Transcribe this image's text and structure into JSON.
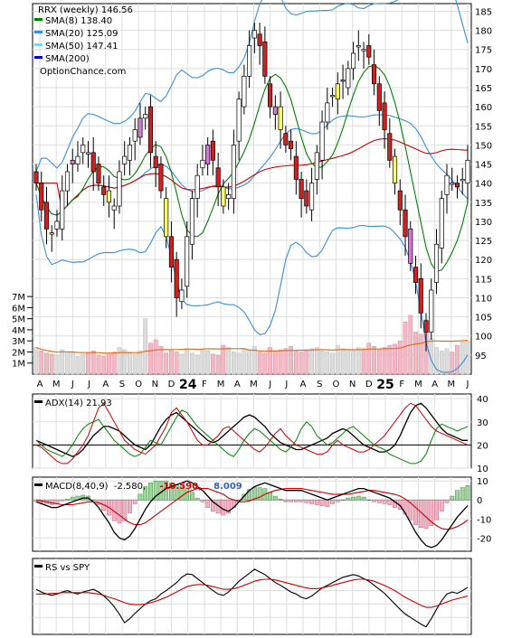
{
  "chart_data": [
    {
      "type": "candlestick",
      "panel": "price",
      "title": "RRX (weekly) 146.56",
      "watermark": "OptionChance.com",
      "legend": [
        {
          "label": "SMA(8) 138.40",
          "color": "#008000"
        },
        {
          "label": "SMA(20) 125.09",
          "color": "#3a8fd6"
        },
        {
          "label": "SMA(50) 147.41",
          "color": "#87ceeb"
        },
        {
          "label": "SMA(200)",
          "color": "#0000cc"
        }
      ],
      "ylim": [
        90,
        187
      ],
      "yticks": [
        95,
        100,
        105,
        110,
        115,
        120,
        125,
        130,
        135,
        140,
        145,
        150,
        155,
        160,
        165,
        170,
        175,
        180,
        185
      ],
      "x_months": [
        "A",
        "M",
        "J",
        "J",
        "A",
        "S",
        "O",
        "N",
        "D",
        "24",
        "F",
        "M",
        "A",
        "M",
        "J",
        "J",
        "A",
        "S",
        "O",
        "N",
        "D",
        "25",
        "F",
        "M",
        "A",
        "M",
        "J"
      ],
      "year_labels": [
        "24",
        "25"
      ],
      "close_approx": [
        140,
        133,
        128,
        127,
        130,
        138,
        143,
        146,
        147,
        150,
        148,
        143,
        140,
        137,
        135,
        134,
        143,
        147,
        150,
        154,
        157,
        158,
        148,
        144,
        138,
        126,
        118,
        110,
        112,
        126,
        136,
        142,
        146,
        150,
        146,
        139,
        134,
        137,
        150,
        162,
        168,
        176,
        180,
        176,
        168,
        160,
        158,
        154,
        150,
        149,
        141,
        136,
        134,
        140,
        148,
        156,
        161,
        163,
        166,
        167,
        170,
        174,
        176,
        175,
        173,
        166,
        159,
        154,
        146,
        140,
        133,
        126,
        119,
        114,
        106,
        101,
        112,
        124,
        136,
        142,
        140,
        139,
        141,
        146
      ]
    },
    {
      "type": "bar",
      "panel": "volume",
      "yticks": [
        "7M",
        "6M",
        "5M",
        "4M",
        "3M",
        "2M",
        "1M"
      ],
      "ylim": [
        0,
        7.5
      ],
      "avg_line_color": "#e07020",
      "values_M_approx": [
        2.4,
        2.1,
        1.9,
        1.8,
        1.7,
        2.2,
        2.0,
        1.9,
        1.6,
        1.8,
        1.9,
        2.1,
        1.7,
        1.6,
        1.8,
        2.0,
        2.4,
        2.2,
        1.9,
        1.8,
        2.1,
        5.0,
        2.8,
        3.1,
        2.5,
        1.9,
        2.2,
        2.0,
        1.8,
        2.3,
        1.9,
        1.7,
        2.2,
        2.1,
        1.8,
        1.7,
        2.6,
        2.4,
        2.0,
        1.9,
        2.3,
        2.2,
        2.5,
        2.0,
        1.9,
        2.4,
        2.1,
        2.2,
        2.3,
        2.5,
        2.1,
        2.0,
        2.2,
        2.3,
        2.4,
        2.1,
        2.0,
        1.9,
        2.6,
        2.3,
        2.2,
        2.1,
        2.4,
        2.3,
        2.8,
        2.5,
        2.2,
        2.4,
        2.6,
        2.7,
        3.0,
        4.7,
        5.3,
        3.8,
        3.6,
        4.9,
        3.2,
        2.4,
        2.1,
        2.3,
        2.0,
        2.6,
        2.9,
        3.0
      ]
    },
    {
      "type": "line",
      "panel": "adx",
      "label": "ADX(14) 21.93",
      "ylim": [
        10,
        42
      ],
      "yticks": [
        40,
        30,
        20,
        10
      ],
      "ref_line": 20,
      "series": [
        {
          "color": "#000000",
          "values_approx": [
            22,
            21,
            20,
            19,
            18,
            17,
            16,
            15,
            16,
            18,
            21,
            24,
            26,
            28,
            28,
            27,
            26,
            24,
            22,
            20,
            19,
            18,
            20,
            24,
            28,
            31,
            33,
            34,
            32,
            30,
            28,
            26,
            24,
            22,
            21,
            22,
            24,
            26,
            28,
            30,
            32,
            33,
            32,
            30,
            28,
            25,
            23,
            21,
            20,
            19,
            18,
            18,
            19,
            20,
            21,
            22,
            23,
            25,
            26,
            27,
            26,
            24,
            22,
            20,
            19,
            18,
            17,
            17,
            18,
            20,
            24,
            29,
            34,
            37,
            38,
            36,
            33,
            30,
            27,
            25,
            24,
            23,
            22,
            22
          ]
        },
        {
          "color": "#008000",
          "values_approx": [
            22,
            20,
            18,
            17,
            16,
            15,
            17,
            20,
            24,
            27,
            29,
            30,
            31,
            28,
            25,
            22,
            20,
            18,
            16,
            15,
            16,
            19,
            22,
            21,
            20,
            24,
            28,
            32,
            35,
            34,
            31,
            28,
            26,
            24,
            22,
            20,
            18,
            16,
            15,
            18,
            22,
            25,
            27,
            26,
            24,
            22,
            20,
            18,
            17,
            19,
            22,
            27,
            30,
            28,
            24,
            22,
            20,
            21,
            23,
            25,
            27,
            28,
            26,
            24,
            22,
            20,
            19,
            18,
            16,
            15,
            14,
            13,
            12,
            12,
            13,
            16,
            22,
            27,
            29,
            28,
            27,
            26,
            27,
            28
          ]
        },
        {
          "color": "#cc0000",
          "values_approx": [
            20,
            19,
            17,
            15,
            13,
            12,
            12,
            14,
            17,
            20,
            24,
            30,
            36,
            38,
            34,
            30,
            26,
            22,
            20,
            18,
            17,
            16,
            18,
            20,
            24,
            28,
            34,
            36,
            33,
            30,
            26,
            22,
            20,
            20,
            22,
            24,
            27,
            28,
            26,
            24,
            22,
            20,
            18,
            17,
            19,
            22,
            25,
            27,
            24,
            22,
            20,
            19,
            18,
            17,
            16,
            16,
            17,
            20,
            22,
            20,
            19,
            18,
            17,
            17,
            18,
            20,
            22,
            24,
            27,
            30,
            33,
            36,
            38,
            37,
            34,
            31,
            28,
            26,
            25,
            24,
            23,
            22,
            21,
            20
          ]
        }
      ]
    },
    {
      "type": "bar+line",
      "panel": "macd",
      "label_prefix": "MACD(8,40,9)",
      "label_value": "-2.580,",
      "label_signal": "-10.590,",
      "label_hist": "8.009",
      "label_signal_color": "#cc0000",
      "label_hist_color": "#3060c0",
      "ylim": [
        -27,
        12
      ],
      "yticks": [
        10,
        0,
        -10,
        -20
      ],
      "macd_approx": [
        -1,
        -2,
        -3,
        -4,
        -4,
        -3,
        -2,
        -1,
        0,
        1,
        1,
        -1,
        -4,
        -8,
        -12,
        -17,
        -20,
        -21,
        -19,
        -15,
        -10,
        -5,
        -1,
        2,
        4,
        6,
        7,
        8,
        9,
        10,
        9,
        7,
        5,
        2,
        -1,
        -3,
        -5,
        -6,
        -4,
        -1,
        2,
        5,
        7,
        8,
        9,
        8,
        7,
        6,
        5,
        5,
        5,
        5,
        4,
        3,
        2,
        1,
        0,
        1,
        2,
        3,
        4,
        5,
        6,
        6,
        5,
        4,
        3,
        2,
        1,
        -1,
        -3,
        -7,
        -12,
        -17,
        -21,
        -24,
        -25,
        -24,
        -21,
        -17,
        -13,
        -9,
        -6,
        -3
      ],
      "signal_approx": [
        0,
        -0.5,
        -1,
        -1.5,
        -2,
        -2.5,
        -2.5,
        -2.5,
        -2,
        -1.5,
        -1,
        -1,
        -1.5,
        -2.5,
        -4,
        -6,
        -8,
        -10,
        -12,
        -13,
        -13,
        -12,
        -10,
        -8,
        -6,
        -4,
        -2,
        0,
        2,
        4,
        5,
        6,
        6,
        6,
        5,
        4,
        3,
        1,
        0,
        -1,
        -1,
        -0.5,
        0.5,
        1.5,
        3,
        4,
        5,
        5.5,
        6,
        6,
        6,
        6,
        5.5,
        5,
        4.5,
        4,
        3.5,
        3,
        3,
        3,
        3,
        3.5,
        4,
        4.5,
        5,
        5,
        4.5,
        4,
        3.5,
        3,
        2,
        0.5,
        -1.5,
        -4,
        -6.5,
        -9,
        -11.5,
        -13.5,
        -15,
        -15.5,
        -15,
        -14,
        -12.5,
        -10.6
      ]
    },
    {
      "type": "line",
      "panel": "rs",
      "label": "RS vs SPY",
      "series": [
        {
          "color": "#000000",
          "values_approx": [
            0.62,
            0.58,
            0.55,
            0.53,
            0.55,
            0.58,
            0.6,
            0.57,
            0.55,
            0.58,
            0.6,
            0.62,
            0.58,
            0.52,
            0.45,
            0.36,
            0.25,
            0.12,
            0.18,
            0.26,
            0.33,
            0.4,
            0.45,
            0.48,
            0.55,
            0.6,
            0.66,
            0.72,
            0.8,
            0.85,
            0.84,
            0.78,
            0.72,
            0.66,
            0.6,
            0.55,
            0.53,
            0.58,
            0.66,
            0.74,
            0.8,
            0.86,
            0.92,
            0.88,
            0.84,
            0.78,
            0.72,
            0.68,
            0.63,
            0.58,
            0.55,
            0.5,
            0.48,
            0.52,
            0.58,
            0.64,
            0.68,
            0.72,
            0.76,
            0.8,
            0.82,
            0.84,
            0.82,
            0.78,
            0.74,
            0.68,
            0.62,
            0.56,
            0.48,
            0.4,
            0.32,
            0.25,
            0.2,
            0.15,
            0.1,
            0.06,
            0.18,
            0.32,
            0.45,
            0.55,
            0.58,
            0.56,
            0.6,
            0.65
          ]
        },
        {
          "color": "#cc0000",
          "values_approx": [
            0.55,
            0.55,
            0.55,
            0.56,
            0.56,
            0.57,
            0.57,
            0.57,
            0.57,
            0.57,
            0.57,
            0.56,
            0.55,
            0.53,
            0.5,
            0.48,
            0.45,
            0.42,
            0.4,
            0.39,
            0.39,
            0.4,
            0.42,
            0.44,
            0.47,
            0.5,
            0.54,
            0.58,
            0.62,
            0.66,
            0.68,
            0.69,
            0.69,
            0.68,
            0.66,
            0.64,
            0.62,
            0.62,
            0.63,
            0.65,
            0.68,
            0.71,
            0.74,
            0.76,
            0.77,
            0.77,
            0.76,
            0.74,
            0.72,
            0.7,
            0.68,
            0.66,
            0.64,
            0.63,
            0.63,
            0.64,
            0.66,
            0.68,
            0.7,
            0.72,
            0.74,
            0.76,
            0.77,
            0.77,
            0.76,
            0.74,
            0.71,
            0.68,
            0.64,
            0.6,
            0.55,
            0.5,
            0.46,
            0.42,
            0.38,
            0.35,
            0.35,
            0.37,
            0.4,
            0.43,
            0.46,
            0.48,
            0.5,
            0.52
          ]
        }
      ]
    }
  ]
}
